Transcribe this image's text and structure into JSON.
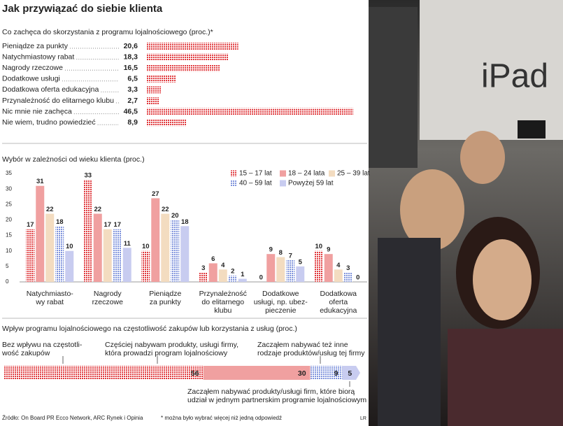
{
  "title": "Jak przywiązać do siebie klienta",
  "source": "Źródło: On Board PR Ecco Network, ARC Rynek i Opinia",
  "footnote": "* można było wybrać więcej niż jedną odpowiedź",
  "credit": "LR",
  "photo_text": "iPad",
  "chart_data": [
    {
      "type": "hbar",
      "title": "Co zachęca do skorzystania z programu lojalnościowego (proc.)*",
      "categories": [
        "Pieniądze za punkty",
        "Natychmiastowy rabat",
        "Nagrody rzeczowe",
        "Dodatkowe usługi",
        "Dodatkowa oferta edukacyjna",
        "Przynależność do elitarnego klubu",
        "Nic mnie nie zachęca",
        "Nie wiem, trudno powiedzieć"
      ],
      "values": [
        20.6,
        18.3,
        16.5,
        6.5,
        3.3,
        2.7,
        46.5,
        8.9
      ],
      "value_labels": [
        "20,6",
        "18,3",
        "16,5",
        "6,5",
        "3,3",
        "2,7",
        "46,5",
        "8,9"
      ],
      "color": "#e03a3e",
      "dotted": true
    },
    {
      "type": "bar",
      "title": "Wybór w zależności od wieku klienta (proc.)",
      "categories": [
        "Natychmiasto-\nwy rabat",
        "Nagrody\nrzeczowe",
        "Pieniądze\nza punkty",
        "Przynależność\ndo elitarnego\nklubu",
        "Dodatkowe\nusługi, np. ubez-\npieczenie",
        "Dodatkowa\noferta\nedukacyjna"
      ],
      "series": [
        {
          "name": "15 – 17 lat",
          "color": "#e03a3e",
          "dotted": true,
          "values": [
            17,
            33,
            10,
            3,
            0,
            10
          ]
        },
        {
          "name": "18 – 24 lata",
          "color": "#f0a0a0",
          "values": [
            31,
            22,
            27,
            6,
            9,
            9
          ]
        },
        {
          "name": "25 – 39 lat",
          "color": "#f3dcc0",
          "values": [
            22,
            17,
            22,
            4,
            8,
            4
          ]
        },
        {
          "name": "40 – 59 lat",
          "color": "#7f93dc",
          "dotted": true,
          "values": [
            18,
            17,
            20,
            2,
            7,
            3
          ]
        },
        {
          "name": "Powyżej 59 lat",
          "color": "#c8ccf0",
          "values": [
            10,
            11,
            18,
            1,
            5,
            0
          ]
        }
      ],
      "ylim": [
        0,
        35
      ],
      "yticks": [
        0,
        5,
        10,
        15,
        20,
        25,
        30,
        35
      ],
      "legend": "top-right"
    },
    {
      "type": "stacked_hbar",
      "title": "Wpływ programu lojalnościowego na częstotliwość zakupów lub korzystania z usług (proc.)",
      "categories": [
        "Bez wpływu na częstotli-\nwość zakupów",
        "Częściej nabywam produkty, usługi firmy,\nktóra prowadzi program lojalnościowy",
        "Zacząłem nabywać też inne\nrodzaje produktów/usług tej firmy",
        "Zacząłem nabywać produkty/usługi firm, które biorą\nudział w jednym partnerskim programie lojalnościowym"
      ],
      "values": [
        56,
        30,
        9,
        5
      ],
      "colors": [
        "#e03a3e",
        "#f0a0a0",
        "#7f93dc",
        "#c8ccf0"
      ],
      "dotted": [
        true,
        false,
        true,
        false
      ]
    }
  ]
}
